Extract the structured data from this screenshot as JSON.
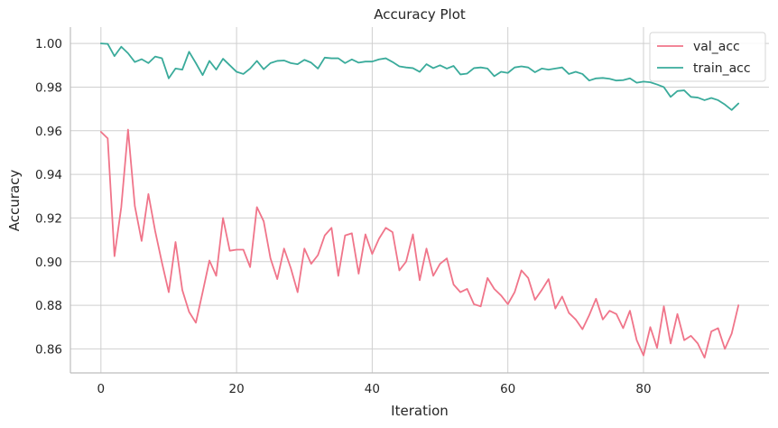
{
  "chart_data": {
    "type": "line",
    "title": "Accuracy Plot",
    "xlabel": "Iteration",
    "ylabel": "Accuracy",
    "xlim": [
      -4.5,
      98.5
    ],
    "ylim": [
      0.849,
      1.0075
    ],
    "xticks": [
      0,
      20,
      40,
      60,
      80
    ],
    "xtick_labels": [
      "0",
      "20",
      "40",
      "60",
      "80"
    ],
    "yticks": [
      0.86,
      0.88,
      0.9,
      0.92,
      0.94,
      0.96,
      0.98,
      1.0
    ],
    "ytick_labels": [
      "0.86",
      "0.88",
      "0.90",
      "0.92",
      "0.94",
      "0.96",
      "0.98",
      "1.00"
    ],
    "grid": true,
    "legend_position": "top-right",
    "x": [
      0,
      1,
      2,
      3,
      4,
      5,
      6,
      7,
      8,
      9,
      10,
      11,
      12,
      13,
      14,
      15,
      16,
      17,
      18,
      19,
      20,
      21,
      22,
      23,
      24,
      25,
      26,
      27,
      28,
      29,
      30,
      31,
      32,
      33,
      34,
      35,
      36,
      37,
      38,
      39,
      40,
      41,
      42,
      43,
      44,
      45,
      46,
      47,
      48,
      49,
      50,
      51,
      52,
      53,
      54,
      55,
      56,
      57,
      58,
      59,
      60,
      61,
      62,
      63,
      64,
      65,
      66,
      67,
      68,
      69,
      70,
      71,
      72,
      73,
      74,
      75,
      76,
      77,
      78,
      79,
      80,
      81,
      82,
      83,
      84,
      85,
      86,
      87,
      88,
      89,
      90,
      91,
      92,
      93,
      94
    ],
    "series": [
      {
        "name": "val_acc",
        "color": "#f0758a",
        "values": [
          0.9595,
          0.9565,
          0.9025,
          0.925,
          0.9605,
          0.9255,
          0.9095,
          0.931,
          0.914,
          0.8995,
          0.886,
          0.909,
          0.887,
          0.877,
          0.872,
          0.886,
          0.9005,
          0.8935,
          0.92,
          0.905,
          0.9055,
          0.9055,
          0.8975,
          0.925,
          0.9185,
          0.9015,
          0.892,
          0.906,
          0.897,
          0.886,
          0.906,
          0.899,
          0.903,
          0.912,
          0.9155,
          0.8935,
          0.912,
          0.913,
          0.8945,
          0.9125,
          0.9035,
          0.9105,
          0.9155,
          0.9135,
          0.896,
          0.9,
          0.9125,
          0.8915,
          0.906,
          0.8935,
          0.899,
          0.9015,
          0.8895,
          0.886,
          0.8875,
          0.8805,
          0.8795,
          0.8925,
          0.8875,
          0.8845,
          0.8805,
          0.886,
          0.896,
          0.8925,
          0.8825,
          0.887,
          0.892,
          0.8785,
          0.884,
          0.8765,
          0.8735,
          0.869,
          0.8755,
          0.883,
          0.8735,
          0.8775,
          0.876,
          0.8695,
          0.8775,
          0.864,
          0.857,
          0.87,
          0.8605,
          0.8795,
          0.8625,
          0.876,
          0.864,
          0.866,
          0.8625,
          0.856,
          0.868,
          0.8695,
          0.86,
          0.867,
          0.88
        ]
      },
      {
        "name": "train_acc",
        "color": "#3aab9b",
        "values": [
          1.0,
          0.9998,
          0.9942,
          0.9985,
          0.9955,
          0.9915,
          0.9928,
          0.991,
          0.994,
          0.9932,
          0.984,
          0.9885,
          0.988,
          0.9962,
          0.991,
          0.9855,
          0.992,
          0.988,
          0.993,
          0.99,
          0.987,
          0.986,
          0.9885,
          0.992,
          0.9882,
          0.991,
          0.992,
          0.9922,
          0.991,
          0.9905,
          0.9925,
          0.9912,
          0.9885,
          0.9935,
          0.9932,
          0.9932,
          0.991,
          0.9927,
          0.9912,
          0.9917,
          0.9917,
          0.9927,
          0.9932,
          0.9915,
          0.9895,
          0.989,
          0.9887,
          0.987,
          0.9905,
          0.9887,
          0.99,
          0.9885,
          0.9897,
          0.9858,
          0.9862,
          0.9887,
          0.989,
          0.9885,
          0.985,
          0.987,
          0.9865,
          0.989,
          0.9895,
          0.989,
          0.9868,
          0.9885,
          0.988,
          0.9885,
          0.989,
          0.986,
          0.987,
          0.986,
          0.983,
          0.984,
          0.9842,
          0.9838,
          0.983,
          0.9832,
          0.984,
          0.982,
          0.9825,
          0.9822,
          0.9812,
          0.98,
          0.9755,
          0.9782,
          0.9785,
          0.9755,
          0.9752,
          0.974,
          0.975,
          0.974,
          0.972,
          0.9695,
          0.9725
        ]
      }
    ]
  }
}
